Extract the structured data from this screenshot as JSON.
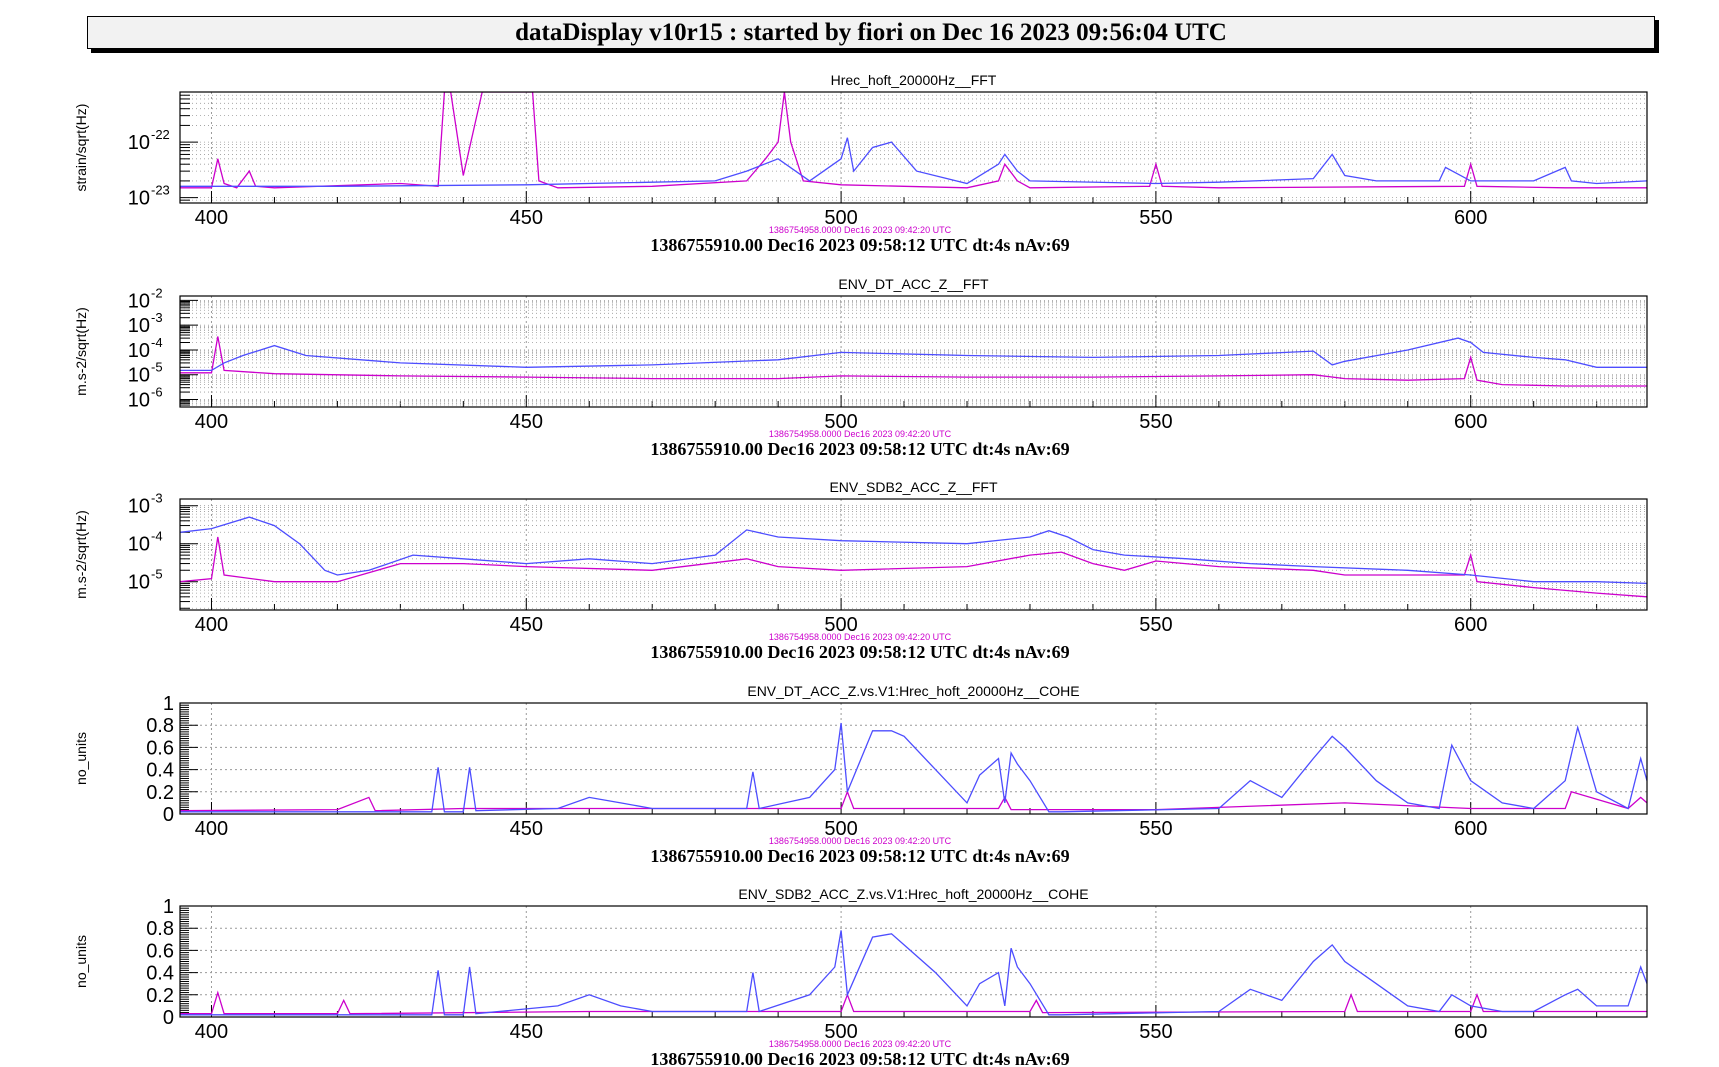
{
  "header": {
    "title": "dataDisplay v10r15 : started by fiori on Dec 16 2023 09:56:04 UTC"
  },
  "colors": {
    "reference_trace": "#cc00cc",
    "current_trace": "#4d4dff",
    "grid": "#9a9a9a",
    "banner_bg": "#f2f2f2"
  },
  "chart_data": [
    {
      "type": "line",
      "title": "Hrec_hoft_20000Hz__FFT",
      "ylabel": "strain/sqrt(Hz)",
      "yscale": "log",
      "xlim": [
        395,
        628
      ],
      "ylim": [
        8e-24,
        8e-22
      ],
      "x_ticks": [
        "400",
        "450",
        "500",
        "550",
        "600"
      ],
      "y_ticks": [
        {
          "value": 1e-22,
          "base": "10",
          "exp": "-22"
        },
        {
          "value": 1e-23,
          "base": "10",
          "exp": "-23"
        }
      ],
      "reference_label": "1386754958.0000 Dec16 2023 09:42:20 UTC",
      "footer": "1386755910.00 Dec16 2023 09:58:12 UTC dt:4s nAv:69",
      "series": [
        {
          "color": "#cc00cc",
          "x": [
            395,
            400,
            401,
            402,
            404,
            406,
            407,
            410,
            430,
            436,
            437,
            438,
            440,
            443,
            446,
            449,
            451,
            452,
            455,
            470,
            485,
            488,
            490,
            491,
            492,
            494,
            500,
            510,
            520,
            525,
            526,
            528,
            530,
            549,
            550,
            551,
            560,
            599,
            600,
            601,
            615,
            628
          ],
          "y": [
            1.5e-23,
            1.5e-23,
            5e-23,
            1.8e-23,
            1.5e-23,
            3e-23,
            1.6e-23,
            1.5e-23,
            1.8e-23,
            1.6e-23,
            8e-22,
            8e-22,
            2.5e-23,
            8e-22,
            8e-22,
            8e-22,
            8e-22,
            2e-23,
            1.5e-23,
            1.6e-23,
            2e-23,
            5e-23,
            1e-22,
            8e-22,
            1e-22,
            2e-23,
            1.7e-23,
            1.6e-23,
            1.5e-23,
            2e-23,
            4e-23,
            2e-23,
            1.5e-23,
            1.6e-23,
            4e-23,
            1.6e-23,
            1.5e-23,
            1.6e-23,
            4e-23,
            1.6e-23,
            1.5e-23,
            1.5e-23
          ]
        },
        {
          "color": "#4d4dff",
          "x": [
            395,
            420,
            450,
            480,
            485,
            490,
            495,
            500,
            501,
            502,
            505,
            508,
            512,
            520,
            525,
            526,
            528,
            530,
            550,
            560,
            575,
            578,
            580,
            585,
            595,
            596,
            600,
            610,
            615,
            616,
            620,
            628
          ],
          "y": [
            1.6e-23,
            1.6e-23,
            1.7e-23,
            2e-23,
            3e-23,
            5e-23,
            2e-23,
            5e-23,
            1.2e-22,
            3e-23,
            8e-23,
            1e-22,
            3e-23,
            1.8e-23,
            4e-23,
            6e-23,
            3e-23,
            2e-23,
            1.8e-23,
            1.9e-23,
            2.2e-23,
            6e-23,
            2.5e-23,
            2e-23,
            2e-23,
            3.5e-23,
            2e-23,
            2e-23,
            3.5e-23,
            2e-23,
            1.8e-23,
            2e-23
          ]
        }
      ]
    },
    {
      "type": "line",
      "title": "ENV_DT_ACC_Z__FFT",
      "ylabel": "m.s-2/sqrt(Hz)",
      "yscale": "log",
      "xlim": [
        395,
        628
      ],
      "ylim": [
        5e-07,
        0.015
      ],
      "x_ticks": [
        "400",
        "450",
        "500",
        "550",
        "600"
      ],
      "y_ticks": [
        {
          "value": 0.01,
          "base": "10",
          "exp": "-2"
        },
        {
          "value": 0.001,
          "base": "10",
          "exp": "-3"
        },
        {
          "value": 0.0001,
          "base": "10",
          "exp": "-4"
        },
        {
          "value": 1e-05,
          "base": "10",
          "exp": "-5"
        },
        {
          "value": 1e-06,
          "base": "10",
          "exp": "-6"
        }
      ],
      "reference_label": "1386754958.0000 Dec16 2023 09:42:20 UTC",
      "footer": "1386755910.00 Dec16 2023 09:58:12 UTC dt:4s nAv:69",
      "series": [
        {
          "color": "#cc00cc",
          "x": [
            395,
            400,
            401,
            402,
            410,
            430,
            450,
            470,
            490,
            500,
            520,
            540,
            560,
            575,
            580,
            590,
            599,
            600,
            601,
            605,
            615,
            628
          ],
          "y": [
            1.2e-05,
            1.2e-05,
            0.00035,
            1.5e-05,
            1.1e-05,
            9e-06,
            8e-06,
            7e-06,
            7e-06,
            9e-06,
            8e-06,
            8e-06,
            9e-06,
            1e-05,
            7e-06,
            6e-06,
            7e-06,
            5e-05,
            6e-06,
            4e-06,
            3.5e-06,
            3.5e-06
          ]
        },
        {
          "color": "#4d4dff",
          "x": [
            395,
            400,
            402,
            405,
            410,
            415,
            430,
            450,
            470,
            490,
            500,
            520,
            540,
            560,
            575,
            578,
            580,
            590,
            598,
            600,
            602,
            610,
            615,
            620,
            628
          ],
          "y": [
            1.5e-05,
            1.5e-05,
            3e-05,
            6e-05,
            0.00015,
            6e-05,
            3e-05,
            2e-05,
            2.5e-05,
            4e-05,
            8e-05,
            6e-05,
            5e-05,
            6e-05,
            9e-05,
            2.5e-05,
            3.5e-05,
            0.0001,
            0.0003,
            0.0002,
            8e-05,
            5e-05,
            4e-05,
            2e-05,
            2e-05
          ]
        }
      ]
    },
    {
      "type": "line",
      "title": "ENV_SDB2_ACC_Z__FFT",
      "ylabel": "m.s-2/sqrt(Hz)",
      "yscale": "log",
      "xlim": [
        395,
        628
      ],
      "ylim": [
        1.8e-06,
        0.0015
      ],
      "x_ticks": [
        "400",
        "450",
        "500",
        "550",
        "600"
      ],
      "y_ticks": [
        {
          "value": 0.001,
          "base": "10",
          "exp": "-3"
        },
        {
          "value": 0.0001,
          "base": "10",
          "exp": "-4"
        },
        {
          "value": 1e-05,
          "base": "10",
          "exp": "-5"
        }
      ],
      "reference_label": "1386754958.0000 Dec16 2023 09:42:20 UTC",
      "footer": "1386755910.00 Dec16 2023 09:58:12 UTC dt:4s nAv:69",
      "series": [
        {
          "color": "#cc00cc",
          "x": [
            395,
            400,
            401,
            402,
            410,
            420,
            430,
            440,
            450,
            470,
            485,
            490,
            500,
            520,
            530,
            535,
            540,
            545,
            550,
            560,
            575,
            580,
            590,
            599,
            600,
            601,
            610,
            620,
            628
          ],
          "y": [
            1e-05,
            1.2e-05,
            0.00015,
            1.5e-05,
            1e-05,
            1e-05,
            3e-05,
            3e-05,
            2.5e-05,
            2e-05,
            4e-05,
            2.5e-05,
            2e-05,
            2.5e-05,
            5e-05,
            6e-05,
            3e-05,
            2e-05,
            3.5e-05,
            2.5e-05,
            2e-05,
            1.5e-05,
            1.5e-05,
            1.5e-05,
            5e-05,
            1e-05,
            7e-06,
            5e-06,
            4e-06
          ]
        },
        {
          "color": "#4d4dff",
          "x": [
            395,
            400,
            406,
            410,
            414,
            418,
            420,
            425,
            432,
            440,
            450,
            460,
            470,
            480,
            485,
            490,
            500,
            520,
            530,
            533,
            536,
            540,
            545,
            555,
            565,
            575,
            590,
            600,
            610,
            620,
            628
          ],
          "y": [
            0.0002,
            0.00025,
            0.0005,
            0.0003,
            0.0001,
            2e-05,
            1.5e-05,
            2e-05,
            5e-05,
            4e-05,
            3e-05,
            4e-05,
            3e-05,
            5e-05,
            0.00023,
            0.00015,
            0.00012,
            0.0001,
            0.00015,
            0.00022,
            0.00015,
            7e-05,
            5e-05,
            4e-05,
            3e-05,
            2.5e-05,
            2e-05,
            1.5e-05,
            1e-05,
            1e-05,
            9e-06
          ]
        }
      ]
    },
    {
      "type": "line",
      "title": "ENV_DT_ACC_Z.vs.V1:Hrec_hoft_20000Hz__COHE",
      "ylabel": "no_units",
      "yscale": "linear",
      "xlim": [
        395,
        628
      ],
      "ylim": [
        0,
        1
      ],
      "x_ticks": [
        "400",
        "450",
        "500",
        "550",
        "600"
      ],
      "y_ticks": [
        {
          "value": 1,
          "label": "1"
        },
        {
          "value": 0.8,
          "label": "0.8"
        },
        {
          "value": 0.6,
          "label": "0.6"
        },
        {
          "value": 0.4,
          "label": "0.4"
        },
        {
          "value": 0.2,
          "label": "0.2"
        },
        {
          "value": 0,
          "label": "0"
        }
      ],
      "reference_label": "1386754958.0000 Dec16 2023 09:42:20 UTC",
      "footer": "1386755910.00 Dec16 2023 09:58:12 UTC dt:4s nAv:69",
      "series": [
        {
          "color": "#cc00cc",
          "x": [
            395,
            420,
            425,
            426,
            440,
            500,
            501,
            502,
            510,
            525,
            526,
            527,
            550,
            580,
            600,
            615,
            616,
            625,
            627,
            628
          ],
          "y": [
            0.03,
            0.04,
            0.15,
            0.03,
            0.05,
            0.05,
            0.2,
            0.05,
            0.05,
            0.05,
            0.15,
            0.04,
            0.04,
            0.1,
            0.05,
            0.05,
            0.2,
            0.05,
            0.15,
            0.1
          ]
        },
        {
          "color": "#4d4dff",
          "x": [
            395,
            435,
            436,
            437,
            440,
            441,
            442,
            455,
            460,
            465,
            470,
            485,
            486,
            487,
            495,
            499,
            500,
            501,
            505,
            508,
            510,
            515,
            520,
            522,
            525,
            526,
            527,
            528,
            530,
            533,
            535,
            560,
            565,
            570,
            575,
            578,
            580,
            585,
            590,
            595,
            597,
            600,
            605,
            610,
            615,
            617,
            620,
            625,
            627,
            628
          ],
          "y": [
            0.02,
            0.02,
            0.42,
            0.02,
            0.02,
            0.42,
            0.03,
            0.05,
            0.15,
            0.1,
            0.05,
            0.05,
            0.38,
            0.05,
            0.15,
            0.4,
            0.82,
            0.2,
            0.75,
            0.75,
            0.7,
            0.4,
            0.1,
            0.35,
            0.5,
            0.1,
            0.55,
            0.45,
            0.3,
            0.02,
            0.02,
            0.05,
            0.3,
            0.15,
            0.5,
            0.7,
            0.6,
            0.3,
            0.1,
            0.05,
            0.62,
            0.3,
            0.1,
            0.05,
            0.3,
            0.78,
            0.2,
            0.05,
            0.5,
            0.3
          ]
        }
      ]
    },
    {
      "type": "line",
      "title": "ENV_SDB2_ACC_Z.vs.V1:Hrec_hoft_20000Hz__COHE",
      "ylabel": "no_units",
      "yscale": "linear",
      "xlim": [
        395,
        628
      ],
      "ylim": [
        0,
        1
      ],
      "x_ticks": [
        "400",
        "450",
        "500",
        "550",
        "600"
      ],
      "y_ticks": [
        {
          "value": 1,
          "label": "1"
        },
        {
          "value": 0.8,
          "label": "0.8"
        },
        {
          "value": 0.6,
          "label": "0.6"
        },
        {
          "value": 0.4,
          "label": "0.4"
        },
        {
          "value": 0.2,
          "label": "0.2"
        },
        {
          "value": 0,
          "label": "0"
        }
      ],
      "reference_label": "1386754958.0000 Dec16 2023 09:42:20 UTC",
      "footer": "1386755910.00 Dec16 2023 09:58:12 UTC dt:4s nAv:69",
      "series": [
        {
          "color": "#cc00cc",
          "x": [
            395,
            400,
            401,
            402,
            420,
            421,
            422,
            460,
            500,
            501,
            502,
            530,
            531,
            532,
            580,
            581,
            582,
            600,
            601,
            602,
            628
          ],
          "y": [
            0.03,
            0.03,
            0.22,
            0.03,
            0.03,
            0.15,
            0.03,
            0.05,
            0.05,
            0.2,
            0.05,
            0.05,
            0.15,
            0.04,
            0.05,
            0.2,
            0.05,
            0.05,
            0.2,
            0.05,
            0.05
          ]
        },
        {
          "color": "#4d4dff",
          "x": [
            395,
            435,
            436,
            437,
            440,
            441,
            442,
            455,
            460,
            465,
            470,
            485,
            486,
            487,
            495,
            499,
            500,
            501,
            505,
            508,
            510,
            515,
            520,
            522,
            525,
            526,
            527,
            528,
            530,
            533,
            535,
            560,
            565,
            570,
            575,
            578,
            580,
            585,
            590,
            595,
            597,
            600,
            605,
            610,
            615,
            617,
            620,
            625,
            627,
            628
          ],
          "y": [
            0.02,
            0.02,
            0.42,
            0.02,
            0.02,
            0.45,
            0.03,
            0.1,
            0.2,
            0.1,
            0.05,
            0.05,
            0.4,
            0.05,
            0.2,
            0.45,
            0.78,
            0.2,
            0.72,
            0.75,
            0.65,
            0.4,
            0.1,
            0.3,
            0.4,
            0.1,
            0.62,
            0.45,
            0.3,
            0.02,
            0.02,
            0.05,
            0.25,
            0.15,
            0.5,
            0.65,
            0.5,
            0.3,
            0.1,
            0.05,
            0.2,
            0.1,
            0.05,
            0.05,
            0.2,
            0.25,
            0.1,
            0.1,
            0.45,
            0.3
          ]
        }
      ]
    }
  ]
}
